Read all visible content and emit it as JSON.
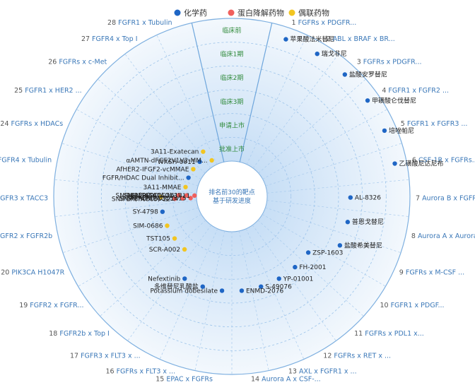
{
  "legend": [
    {
      "label": "化学药",
      "color": "#1f66c5"
    },
    {
      "label": "蛋白降解药物",
      "color": "#f0605d"
    },
    {
      "label": "偶联药物",
      "color": "#f2c521"
    }
  ],
  "center_text": [
    "排名前30的靶点",
    "基于研发进度"
  ],
  "stages": [
    "临床前",
    "临床1期",
    "临床2期",
    "临床3期",
    "申请上市",
    "批准上市"
  ],
  "targets": [
    {
      "num": "1",
      "name": "FGFRs x PDGFR..."
    },
    {
      "num": "2",
      "name": "ABL x BRAF x BR..."
    },
    {
      "num": "3",
      "name": "FGFRs x PDGFR..."
    },
    {
      "num": "4",
      "name": "FGFR1 x FGFR2 ..."
    },
    {
      "num": "5",
      "name": "FGFR1 x FGFR3 ..."
    },
    {
      "num": "6",
      "name": "CSF-1R x FGFRs..."
    },
    {
      "num": "7",
      "name": "Aurora B x FGFR..."
    },
    {
      "num": "8",
      "name": "Aurora A x Aurora..."
    },
    {
      "num": "9",
      "name": "FGFRs x M-CSF ..."
    },
    {
      "num": "10",
      "name": "FGFR1 x PDGF..."
    },
    {
      "num": "11",
      "name": "FGFRs x PDL1 x..."
    },
    {
      "num": "12",
      "name": "FGFRs x RET x ..."
    },
    {
      "num": "13",
      "name": "AXL x FGFR1 x ..."
    },
    {
      "num": "14",
      "name": "Aurora A x CSF-..."
    },
    {
      "num": "15",
      "name": "EPAC x FGFRs"
    },
    {
      "num": "16",
      "name": "FGFRs x FLT3 x ..."
    },
    {
      "num": "17",
      "name": "FGFR3 x FLT3 x ..."
    },
    {
      "num": "18",
      "name": "FGFR2b x Top I"
    },
    {
      "num": "19",
      "name": "FGFR2 x FGFR..."
    },
    {
      "num": "20",
      "name": "PIK3CA H1047R"
    },
    {
      "num": "21",
      "name": "FGFR2 x FGFR2b"
    },
    {
      "num": "22",
      "name": "FGFR3 x TACC3"
    },
    {
      "num": "23",
      "name": "FGFR4 x Tubulin"
    },
    {
      "num": "24",
      "name": "FGFRs x HDACs"
    },
    {
      "num": "25",
      "name": "FGFR1 x HER2 ..."
    },
    {
      "num": "26",
      "name": "FGFRs x c-Met"
    },
    {
      "num": "27",
      "name": "FGFR4 x Top I"
    },
    {
      "num": "28",
      "name": "FGFR1 x Tubulin"
    }
  ],
  "drugs": [
    {
      "label": "苹果酸法米替尼",
      "type": 0,
      "target": 1,
      "stage": 5
    },
    {
      "label": "瑞戈非尼",
      "type": 0,
      "target": 2,
      "stage": 5
    },
    {
      "label": "盐酸安罗替尼",
      "type": 0,
      "target": 3,
      "stage": 5
    },
    {
      "label": "甲磺酸仑伐替尼",
      "type": 0,
      "target": 4,
      "stage": 5
    },
    {
      "label": "培唑帕尼",
      "type": 0,
      "target": 5,
      "stage": 5
    },
    {
      "label": "乙磺酸尼达尼布",
      "type": 0,
      "target": 6,
      "stage": 5
    },
    {
      "label": "AL-8326",
      "type": 0,
      "target": 7,
      "stage": 3
    },
    {
      "label": "普恩戈替尼",
      "type": 0,
      "target": 8,
      "stage": 3
    },
    {
      "label": "盐酸希美替尼",
      "type": 0,
      "target": 9,
      "stage": 3
    },
    {
      "label": "ZSP-1603",
      "type": 0,
      "target": 10,
      "stage": 2
    },
    {
      "label": "FH-2001",
      "type": 0,
      "target": 11,
      "stage": 2
    },
    {
      "label": "YP-01001",
      "type": 0,
      "target": 12,
      "stage": 2
    },
    {
      "label": "S-49076",
      "type": 0,
      "target": 13,
      "stage": 2
    },
    {
      "label": "ENMD-2076",
      "type": 0,
      "target": 14,
      "stage": 2
    },
    {
      "label": "多维替尼乳酸盐",
      "type": 0,
      "target": 16,
      "stage": 2
    },
    {
      "label": "Nefextinib",
      "type": 0,
      "target": 17,
      "stage": 2
    },
    {
      "label": "Potassium dobesilate",
      "type": 0,
      "target": 15,
      "stage": 2
    },
    {
      "label": "SCR-A002",
      "type": 2,
      "target": 18,
      "stage": 1
    },
    {
      "label": "TST105",
      "type": 2,
      "target": 19,
      "stage": 1
    },
    {
      "label": "SIM-0686",
      "type": 2,
      "target": 20,
      "stage": 1
    },
    {
      "label": "SY-4798",
      "type": 0,
      "target": 21,
      "stage": 1
    },
    {
      "label": "BG-C137",
      "type": 2,
      "target": 22,
      "stage": 1
    },
    {
      "label": "SNIPER(TACC3)-12",
      "type": 1,
      "target": 22,
      "stage": 0
    },
    {
      "label": "SNIPER(TACC3)-16",
      "type": 1,
      "target": 22,
      "stage": 0
    },
    {
      "label": "SNIPER(TACC3)-14",
      "type": 1,
      "target": 22,
      "stage": 0
    },
    {
      "label": "SNIPER(TACC3)-13",
      "type": 1,
      "target": 22,
      "stage": 0
    },
    {
      "label": "SNIPER(TACC3)-15",
      "type": 1,
      "target": 22,
      "stage": 0
    },
    {
      "label": "SNIPER(TACC3)-11",
      "type": 1,
      "target": 22,
      "stage": 0
    },
    {
      "label": "3A11-MMAE",
      "type": 2,
      "target": 23,
      "stage": 0
    },
    {
      "label": "FGFR/HDAC Dual Inhibit...",
      "type": 0,
      "target": 24,
      "stage": 0
    },
    {
      "label": "AfHER2-IFGF2-vcMMAE",
      "type": 2,
      "target": 25,
      "stage": 0
    },
    {
      "label": "WXSH-0011",
      "type": 0,
      "target": 26,
      "stage": 0
    },
    {
      "label": "3A11-Exatecan",
      "type": 2,
      "target": 27,
      "stage": 0
    },
    {
      "label": "αAMTN-dFGF2V1V2-MM...",
      "type": 2,
      "target": 27,
      "stage": 0
    }
  ]
}
